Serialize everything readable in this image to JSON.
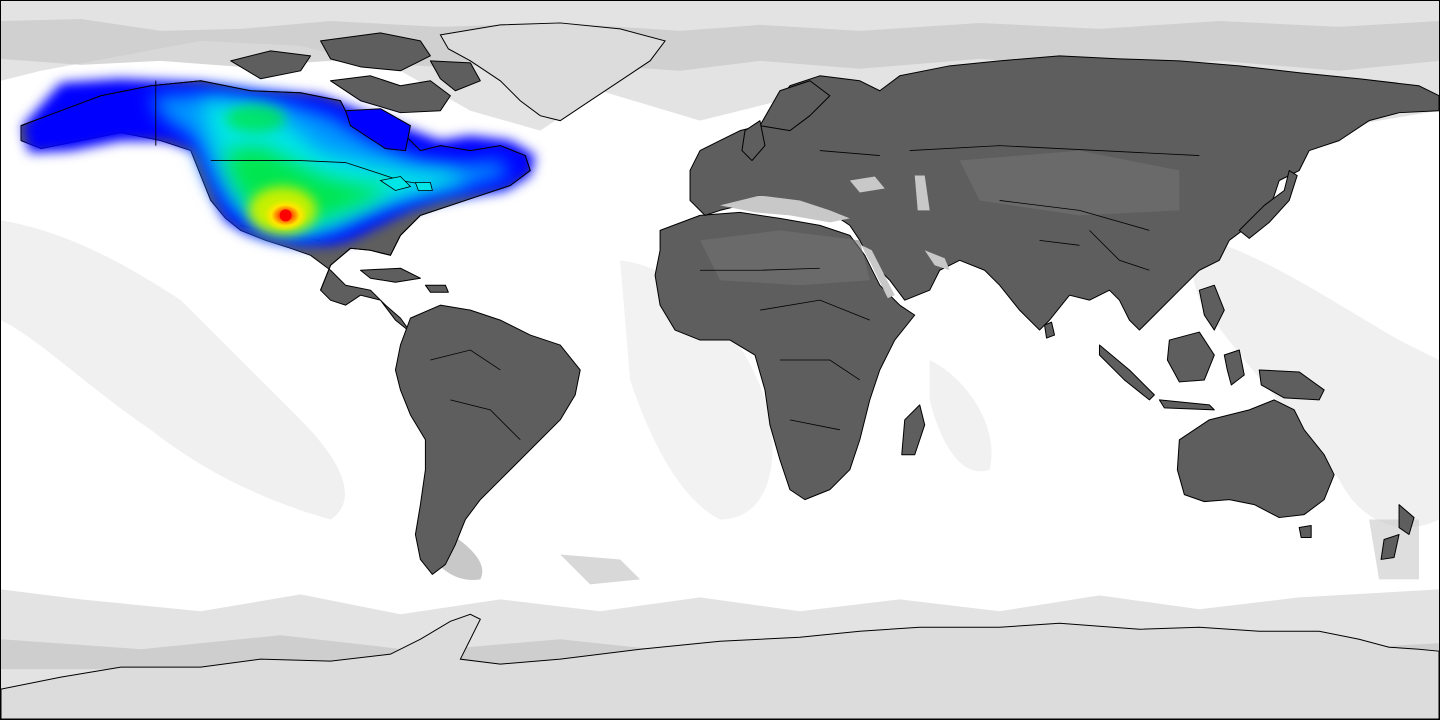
{
  "map": {
    "projection": "equirectangular",
    "extent": {
      "lon": [
        -180,
        180
      ],
      "lat": [
        -90,
        90
      ]
    },
    "colors": {
      "ocean": "#ffffff",
      "land": "#5e5e5e",
      "land_light": "#737373",
      "sea_shade_light": "#e3e3e3",
      "sea_shade_mid": "#c8c8c8",
      "ice": "#dcdcdc",
      "border": "#000000"
    },
    "heatmap": {
      "region": "North America",
      "colormap": [
        "#0000ff",
        "#0096ff",
        "#00e6e6",
        "#00e650",
        "#c8f000",
        "#ffff00",
        "#ff9600",
        "#ff0000"
      ],
      "peak": {
        "lon": -108,
        "lat": 33.5
      }
    }
  }
}
